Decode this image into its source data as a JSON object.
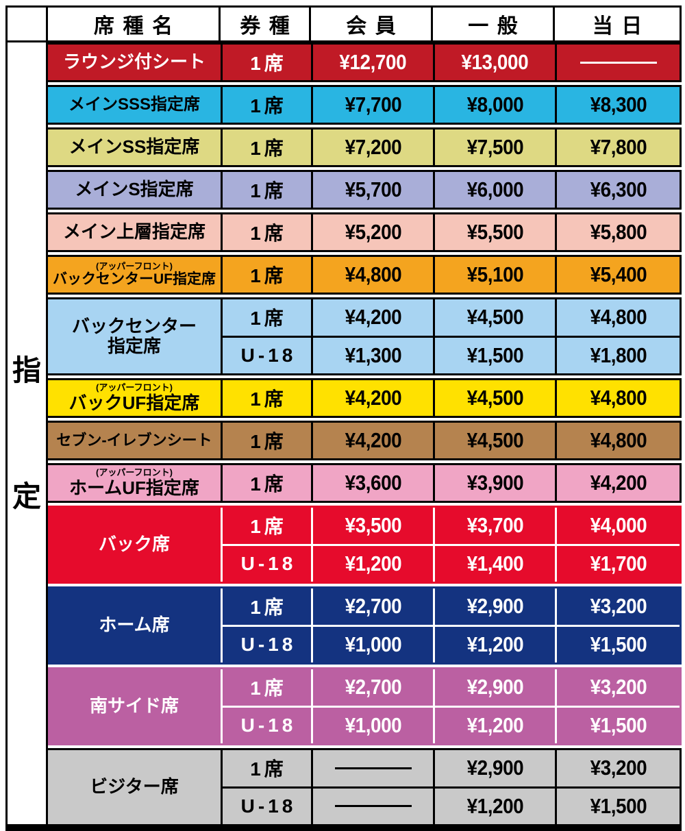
{
  "header": {
    "seat_name": "席種名",
    "ticket_type": "券種",
    "member": "会員",
    "general": "一般",
    "day": "当日"
  },
  "side_label": "指定",
  "blocks": [
    {
      "name": "ラウンジ付シート",
      "sublabel": null,
      "bg": "#c01a26",
      "text": "#ffffff",
      "dark": false,
      "rows": [
        {
          "type": "1席",
          "member": "¥12,700",
          "general": "¥13,000",
          "day": null
        }
      ]
    },
    {
      "name": "メインSSS指定席",
      "sublabel": null,
      "bg": "#29b5e2",
      "text": "#000000",
      "dark": false,
      "rows": [
        {
          "type": "1席",
          "member": "¥7,700",
          "general": "¥8,000",
          "day": "¥8,300"
        }
      ]
    },
    {
      "name": "メインSS指定席",
      "sublabel": null,
      "bg": "#ded983",
      "text": "#000000",
      "dark": false,
      "rows": [
        {
          "type": "1席",
          "member": "¥7,200",
          "general": "¥7,500",
          "day": "¥7,800"
        }
      ]
    },
    {
      "name": "メインS指定席",
      "sublabel": null,
      "bg": "#a9aed8",
      "text": "#000000",
      "dark": false,
      "rows": [
        {
          "type": "1席",
          "member": "¥5,700",
          "general": "¥6,000",
          "day": "¥6,300"
        }
      ]
    },
    {
      "name": "メイン上層指定席",
      "sublabel": null,
      "bg": "#f6c5b9",
      "text": "#000000",
      "dark": false,
      "rows": [
        {
          "type": "1席",
          "member": "¥5,200",
          "general": "¥5,500",
          "day": "¥5,800"
        }
      ]
    },
    {
      "name": "バックセンターUF指定席",
      "sublabel": "(アッパーフロント)",
      "bg": "#f4a41f",
      "text": "#000000",
      "dark": false,
      "rows": [
        {
          "type": "1席",
          "member": "¥4,800",
          "general": "¥5,100",
          "day": "¥5,400"
        }
      ]
    },
    {
      "name": "バックセンター\n指定席",
      "sublabel": null,
      "bg": "#a8d4f2",
      "text": "#000000",
      "dark": false,
      "rows": [
        {
          "type": "1席",
          "member": "¥4,200",
          "general": "¥4,500",
          "day": "¥4,800"
        },
        {
          "type": "U-18",
          "member": "¥1,300",
          "general": "¥1,500",
          "day": "¥1,800"
        }
      ]
    },
    {
      "name": "バックUF指定席",
      "sublabel": "(アッパーフロント)",
      "bg": "#ffe100",
      "text": "#000000",
      "dark": false,
      "rows": [
        {
          "type": "1席",
          "member": "¥4,200",
          "general": "¥4,500",
          "day": "¥4,800"
        }
      ]
    },
    {
      "name": "セブン-イレブンシート",
      "sublabel": null,
      "bg": "#b5834f",
      "text": "#000000",
      "dark": false,
      "rows": [
        {
          "type": "1席",
          "member": "¥4,200",
          "general": "¥4,500",
          "day": "¥4,800"
        }
      ]
    },
    {
      "name": "ホームUF指定席",
      "sublabel": "(アッパーフロント)",
      "bg": "#f0a5c5",
      "text": "#000000",
      "dark": false,
      "rows": [
        {
          "type": "1席",
          "member": "¥3,600",
          "general": "¥3,900",
          "day": "¥4,200"
        }
      ]
    },
    {
      "name": "バック席",
      "sublabel": null,
      "bg": "#e60b2c",
      "text": "#ffffff",
      "dark": true,
      "rows": [
        {
          "type": "1席",
          "member": "¥3,500",
          "general": "¥3,700",
          "day": "¥4,000"
        },
        {
          "type": "U-18",
          "member": "¥1,200",
          "general": "¥1,400",
          "day": "¥1,700"
        }
      ]
    },
    {
      "name": "ホーム席",
      "sublabel": null,
      "bg": "#143380",
      "text": "#ffffff",
      "dark": true,
      "rows": [
        {
          "type": "1席",
          "member": "¥2,700",
          "general": "¥2,900",
          "day": "¥3,200"
        },
        {
          "type": "U-18",
          "member": "¥1,000",
          "general": "¥1,200",
          "day": "¥1,500"
        }
      ]
    },
    {
      "name": "南サイド席",
      "sublabel": null,
      "bg": "#bb60a2",
      "text": "#ffffff",
      "dark": true,
      "rows": [
        {
          "type": "1席",
          "member": "¥2,700",
          "general": "¥2,900",
          "day": "¥3,200"
        },
        {
          "type": "U-18",
          "member": "¥1,000",
          "general": "¥1,200",
          "day": "¥1,500"
        }
      ]
    },
    {
      "name": "ビジター席",
      "sublabel": null,
      "bg": "#c9c9c9",
      "text": "#000000",
      "dark": false,
      "rows": [
        {
          "type": "1席",
          "member": null,
          "general": "¥2,900",
          "day": "¥3,200"
        },
        {
          "type": "U-18",
          "member": null,
          "general": "¥1,200",
          "day": "¥1,500"
        }
      ]
    }
  ]
}
